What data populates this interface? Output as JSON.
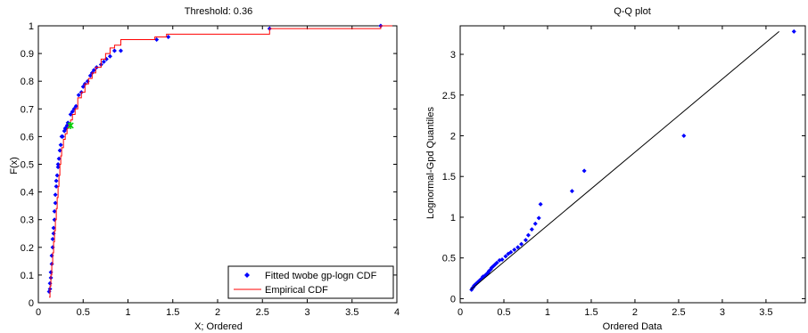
{
  "chart_data": [
    {
      "type": "line",
      "title": "Threshold: 0.36",
      "xlabel": "X; Ordered",
      "ylabel": "F(x)",
      "xlim": [
        0,
        4
      ],
      "ylim": [
        0,
        1
      ],
      "xticks": [
        "0",
        "0.5",
        "1",
        "1.5",
        "2",
        "2.5",
        "3",
        "3.5",
        "4"
      ],
      "yticks": [
        "0",
        "0.1",
        "0.2",
        "0.3",
        "0.4",
        "0.5",
        "0.6",
        "0.7",
        "0.8",
        "0.9",
        "1"
      ],
      "legend": {
        "position": "bottom-right",
        "entries": [
          "Fitted twobe gp-logn CDF",
          "Empirical CDF"
        ]
      },
      "series": [
        {
          "name": "Fitted twobe gp-logn CDF",
          "style": "points",
          "color": "#0000ff",
          "x": [
            0.12,
            0.13,
            0.13,
            0.14,
            0.14,
            0.15,
            0.15,
            0.16,
            0.16,
            0.17,
            0.17,
            0.18,
            0.18,
            0.19,
            0.19,
            0.2,
            0.2,
            0.21,
            0.22,
            0.22,
            0.23,
            0.24,
            0.25,
            0.26,
            0.27,
            0.29,
            0.3,
            0.31,
            0.32,
            0.33,
            0.36,
            0.38,
            0.4,
            0.42,
            0.45,
            0.48,
            0.5,
            0.52,
            0.55,
            0.58,
            0.6,
            0.62,
            0.65,
            0.7,
            0.73,
            0.76,
            0.8,
            0.85,
            0.92,
            1.32,
            1.45,
            2.58,
            3.82
          ],
          "y": [
            0.04,
            0.05,
            0.07,
            0.09,
            0.11,
            0.14,
            0.17,
            0.2,
            0.23,
            0.25,
            0.27,
            0.3,
            0.33,
            0.36,
            0.39,
            0.42,
            0.44,
            0.46,
            0.49,
            0.5,
            0.52,
            0.55,
            0.57,
            0.6,
            0.6,
            0.62,
            0.63,
            0.63,
            0.64,
            0.65,
            0.68,
            0.69,
            0.7,
            0.71,
            0.75,
            0.76,
            0.78,
            0.79,
            0.8,
            0.82,
            0.83,
            0.84,
            0.85,
            0.86,
            0.87,
            0.88,
            0.89,
            0.91,
            0.91,
            0.95,
            0.96,
            0.99,
            1.0
          ]
        },
        {
          "name": "Empirical CDF",
          "style": "step",
          "color": "#ff0000",
          "x": [
            0.12,
            0.13,
            0.14,
            0.15,
            0.16,
            0.17,
            0.18,
            0.19,
            0.2,
            0.21,
            0.22,
            0.23,
            0.24,
            0.25,
            0.26,
            0.28,
            0.3,
            0.32,
            0.34,
            0.36,
            0.38,
            0.41,
            0.44,
            0.48,
            0.52,
            0.56,
            0.6,
            0.64,
            0.7,
            0.75,
            0.8,
            0.85,
            0.92,
            1.3,
            1.43,
            2.58,
            3.82
          ],
          "y": [
            0.02,
            0.06,
            0.1,
            0.14,
            0.18,
            0.22,
            0.26,
            0.3,
            0.34,
            0.38,
            0.42,
            0.46,
            0.5,
            0.53,
            0.56,
            0.59,
            0.61,
            0.63,
            0.64,
            0.66,
            0.68,
            0.7,
            0.74,
            0.76,
            0.79,
            0.81,
            0.83,
            0.85,
            0.88,
            0.9,
            0.92,
            0.93,
            0.95,
            0.96,
            0.97,
            0.99,
            1.0
          ]
        }
      ],
      "highlight": {
        "x": 0.36,
        "y": 0.64,
        "color": "#00cc00"
      }
    },
    {
      "type": "scatter",
      "title": "Q-Q plot",
      "xlabel": "Ordered Data",
      "ylabel": "Lognormal-Gpd Quantiles",
      "xlim": [
        0,
        3.95
      ],
      "ylim": [
        -0.05,
        3.35
      ],
      "xticks": [
        "0",
        "0.5",
        "1",
        "1.5",
        "2",
        "2.5",
        "3",
        "3.5"
      ],
      "yticks": [
        "0",
        "0.5",
        "1",
        "1.5",
        "2",
        "2.5",
        "3"
      ],
      "series": [
        {
          "name": "",
          "style": "points",
          "color": "#0000ff",
          "x": [
            0.13,
            0.14,
            0.15,
            0.16,
            0.17,
            0.18,
            0.19,
            0.2,
            0.21,
            0.22,
            0.23,
            0.24,
            0.25,
            0.26,
            0.28,
            0.3,
            0.32,
            0.33,
            0.35,
            0.36,
            0.38,
            0.4,
            0.42,
            0.45,
            0.48,
            0.52,
            0.55,
            0.58,
            0.62,
            0.66,
            0.7,
            0.75,
            0.78,
            0.82,
            0.86,
            0.9,
            0.92,
            1.28,
            1.42,
            2.56,
            3.82
          ],
          "y": [
            0.11,
            0.13,
            0.14,
            0.16,
            0.17,
            0.18,
            0.19,
            0.2,
            0.21,
            0.22,
            0.23,
            0.24,
            0.25,
            0.27,
            0.28,
            0.3,
            0.32,
            0.34,
            0.36,
            0.38,
            0.4,
            0.42,
            0.44,
            0.47,
            0.48,
            0.52,
            0.55,
            0.57,
            0.6,
            0.63,
            0.67,
            0.72,
            0.78,
            0.85,
            0.92,
            0.99,
            1.16,
            1.32,
            1.57,
            2.0,
            3.28
          ]
        },
        {
          "name": "",
          "style": "reference-line",
          "color": "#000000",
          "x": [
            0.12,
            3.65
          ],
          "y": [
            0.11,
            3.28
          ]
        }
      ]
    }
  ]
}
